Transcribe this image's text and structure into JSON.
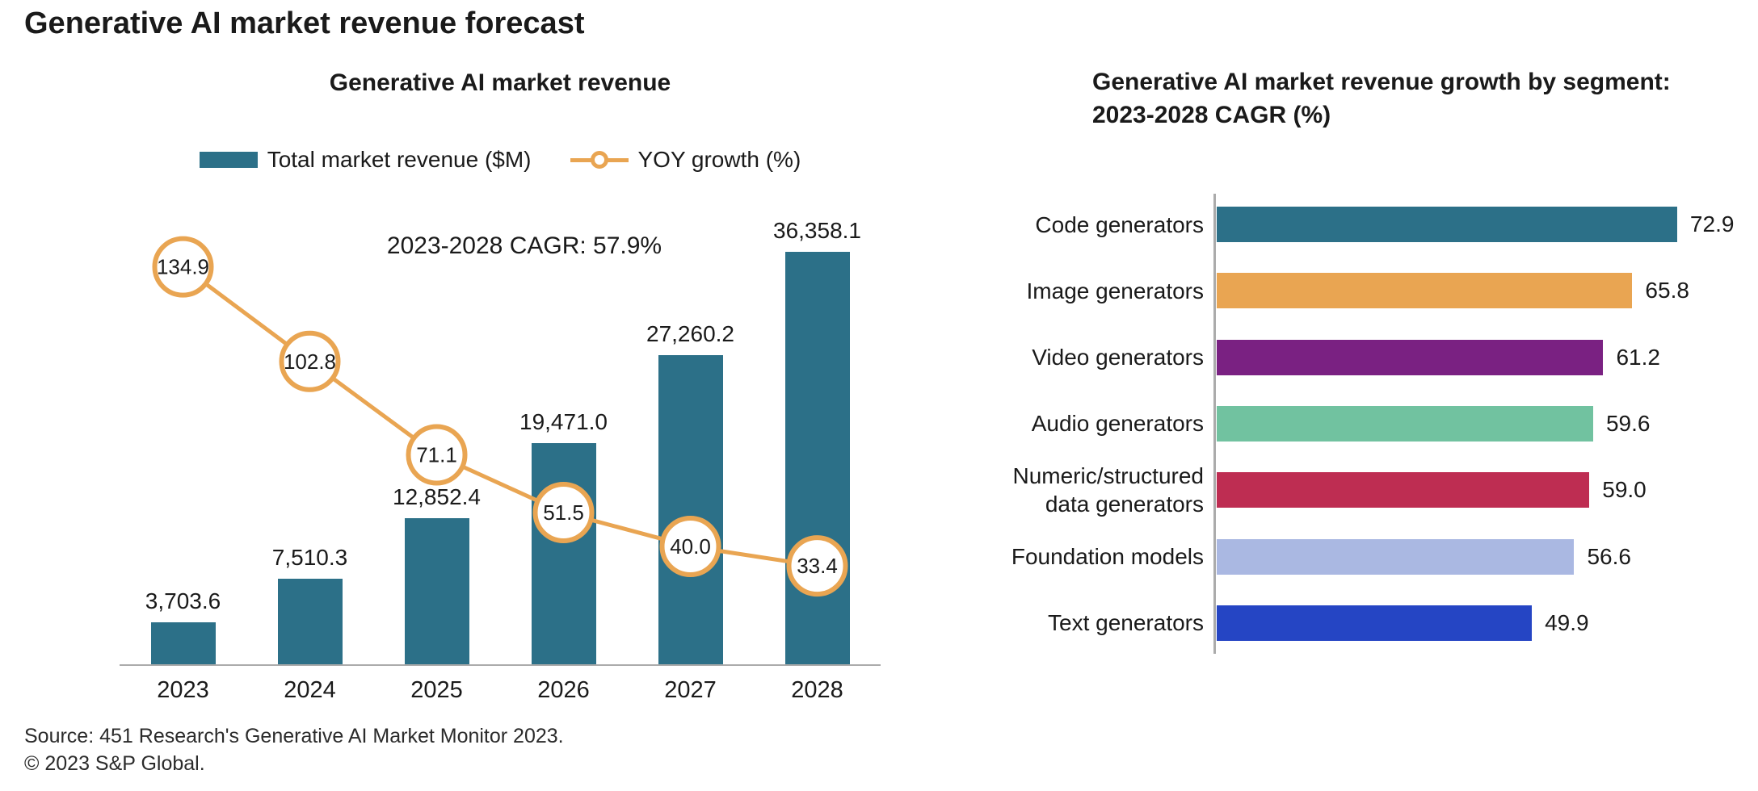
{
  "page": {
    "title": "Generative AI market revenue forecast",
    "source_line1": "Source: 451 Research's Generative AI Market Monitor 2023.",
    "source_line2": "© 2023 S&P Global."
  },
  "colors": {
    "teal": "#2C7088",
    "orange": "#E9A552",
    "purple": "#7A2182",
    "seafoam": "#71C2A0",
    "crimson": "#BE2D52",
    "periwinkle": "#AAB8E2",
    "royal_blue": "#2545C4",
    "text": "#1A1A1A",
    "axis": "#ABABAB"
  },
  "chart_data": [
    {
      "type": "combo",
      "title": "Generative AI market revenue",
      "annotation": "2023-2028 CAGR: 57.9%",
      "categories": [
        "2023",
        "2024",
        "2025",
        "2026",
        "2027",
        "2028"
      ],
      "series": [
        {
          "name": "Total market revenue ($M)",
          "type": "bar",
          "color_key": "teal",
          "values": [
            3703.6,
            7510.3,
            12852.4,
            19471.0,
            27260.2,
            36358.1
          ],
          "labels": [
            "3,703.6",
            "7,510.3",
            "12,852.4",
            "19,471.0",
            "27,260.2",
            "36,358.1"
          ]
        },
        {
          "name": "YOY growth (%)",
          "type": "line",
          "color_key": "orange",
          "values": [
            134.9,
            102.8,
            71.1,
            51.5,
            40.0,
            33.4
          ],
          "labels": [
            "134.9",
            "102.8",
            "71.1",
            "51.5",
            "40.0",
            "33.4"
          ]
        }
      ],
      "ylim_bar": [
        0,
        40000
      ],
      "ylim_line": [
        0,
        160
      ],
      "legend_position": "top",
      "grid": false
    },
    {
      "type": "bar",
      "orientation": "horizontal",
      "title": "Generative AI market revenue growth by segment: 2023-2028 CAGR (%)",
      "categories": [
        "Code generators",
        "Image generators",
        "Video generators",
        "Audio generators",
        "Numeric/structured\ndata generators",
        "Foundation models",
        "Text generators"
      ],
      "values": [
        72.9,
        65.8,
        61.2,
        59.6,
        59.0,
        56.6,
        49.9
      ],
      "labels": [
        "72.9",
        "65.8",
        "61.2",
        "59.6",
        "59.0",
        "56.6",
        "49.9"
      ],
      "bar_color_keys": [
        "teal",
        "orange",
        "purple",
        "seafoam",
        "crimson",
        "periwinkle",
        "royal_blue"
      ],
      "xlim": [
        0,
        80
      ],
      "legend_position": "none",
      "grid": false
    }
  ]
}
